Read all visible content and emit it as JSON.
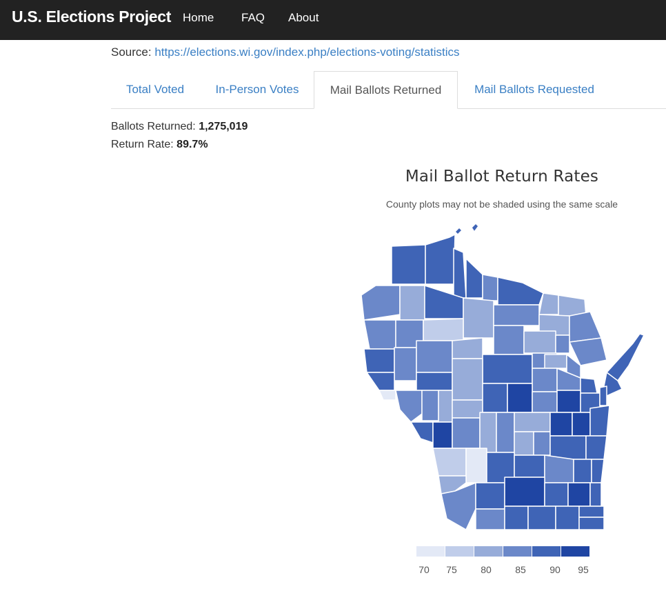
{
  "nav": {
    "brand": "U.S. Elections Project",
    "links": [
      "Home",
      "FAQ",
      "About"
    ]
  },
  "source": {
    "label": "Source:",
    "url": "https://elections.wi.gov/index.php/elections-voting/statistics"
  },
  "tabs": [
    "Total Voted",
    "In-Person Votes",
    "Mail Ballots Returned",
    "Mail Ballots Requested"
  ],
  "active_tab": "Mail Ballots Returned",
  "stats": {
    "ballots_returned_label": "Ballots Returned:",
    "ballots_returned_value": "1,275,019",
    "return_rate_label": "Return Rate:",
    "return_rate_value": "89.7%"
  },
  "map": {
    "title": "Mail Ballot Return Rates",
    "subtitle": "County plots may not be shaded using the same scale",
    "legend_ticks": [
      "70",
      "75",
      "80",
      "85",
      "90",
      "95"
    ],
    "legend_colors": [
      "#e3e9f6",
      "#c0cdea",
      "#97acd9",
      "#6b88c9",
      "#3f64b6",
      "#1f45a3"
    ]
  },
  "colors": {
    "navbar": "#222222",
    "link": "#3a7fc4",
    "county_scale_low": "#e3e9f6",
    "county_scale_high": "#1f45a3"
  }
}
